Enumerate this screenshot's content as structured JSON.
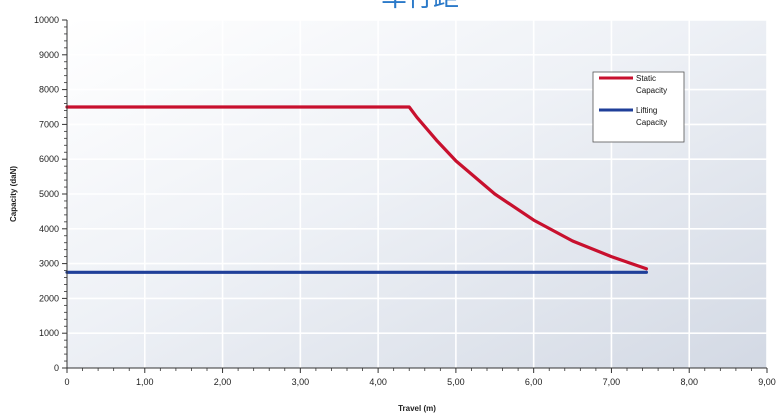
{
  "chart_data": {
    "type": "line",
    "title": "车行距",
    "xlabel": "Travel (m)",
    "ylabel": "Capacity (daN)",
    "xlim": [
      0,
      9
    ],
    "ylim": [
      0,
      10000
    ],
    "x_ticks": [
      "0",
      "1,00",
      "2,00",
      "3,00",
      "4,00",
      "5,00",
      "6,00",
      "7,00",
      "8,00",
      "9,00"
    ],
    "y_ticks": [
      "0",
      "1000",
      "2000",
      "3000",
      "4000",
      "5000",
      "6000",
      "7000",
      "8000",
      "9000",
      "10000"
    ],
    "grid": true,
    "legend_position": "top-right",
    "series": [
      {
        "name": "Static Capacity",
        "color": "#c8102e",
        "points": [
          [
            0,
            7500
          ],
          [
            4.0,
            7500
          ],
          [
            4.4,
            7500
          ],
          [
            4.5,
            7200
          ],
          [
            4.75,
            6550
          ],
          [
            5.0,
            5950
          ],
          [
            5.5,
            5000
          ],
          [
            6.0,
            4250
          ],
          [
            6.5,
            3650
          ],
          [
            7.0,
            3200
          ],
          [
            7.45,
            2850
          ]
        ]
      },
      {
        "name": "Lifting Capacity",
        "color": "#1f3f99",
        "points": [
          [
            0,
            2750
          ],
          [
            7.45,
            2750
          ]
        ]
      }
    ]
  }
}
